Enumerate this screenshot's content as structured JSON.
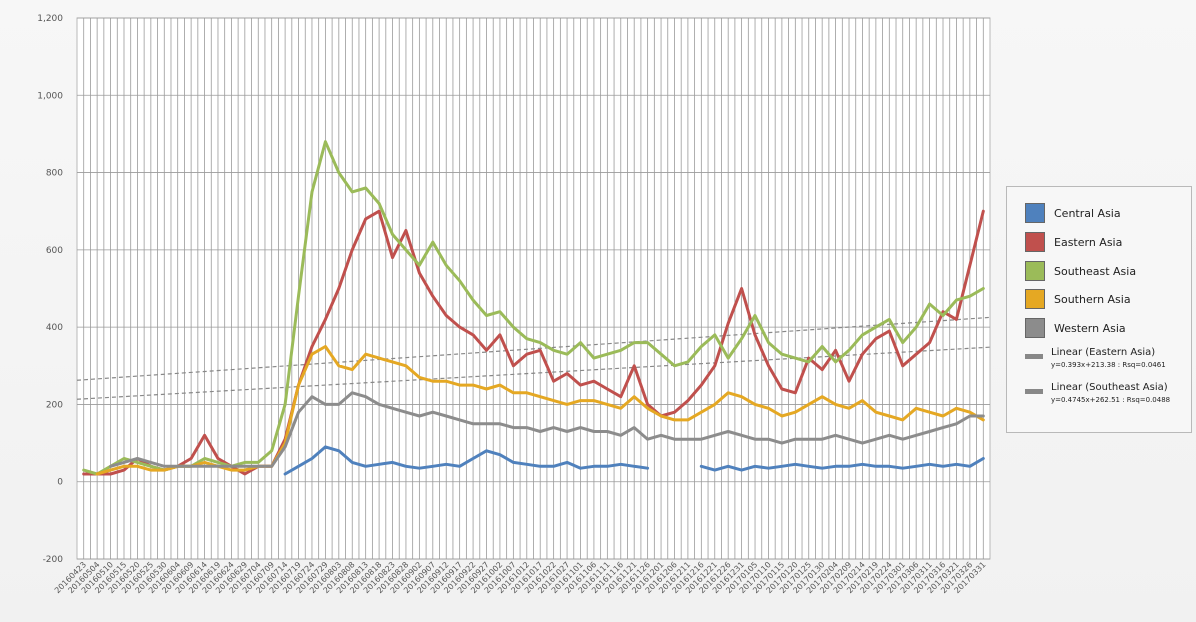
{
  "chart_data": {
    "type": "line",
    "title": "",
    "xlabel": "",
    "ylabel": "",
    "ylim": [
      -200,
      1200
    ],
    "yticks": [
      "-200",
      "0",
      "200",
      "400",
      "600",
      "800",
      "1,000",
      "1,200"
    ],
    "x_tick_labels": [
      "20160423",
      "20160504",
      "20160510",
      "20160515",
      "20160520",
      "20160525",
      "20160530",
      "20160604",
      "20160609",
      "20160614",
      "20160619",
      "20160624",
      "20160629",
      "20160704",
      "20160709",
      "20160714",
      "20160719",
      "20160724",
      "20160729",
      "20160803",
      "20160808",
      "20160813",
      "20160818",
      "20160823",
      "20160828",
      "20160902",
      "20160907",
      "20160912",
      "20160917",
      "20160922",
      "20160927",
      "20161002",
      "20161007",
      "20161012",
      "20161017",
      "20161022",
      "20161027",
      "20161101",
      "20161106",
      "20161111",
      "20161116",
      "20161121",
      "20161126",
      "20161201",
      "20161206",
      "20161211",
      "20161216",
      "20161221",
      "20161226",
      "20161231",
      "20170105",
      "20170110",
      "20170115",
      "20170120",
      "20170125",
      "20170130",
      "20170204",
      "20170209",
      "20170214",
      "20170219",
      "20170224",
      "20170301",
      "20170306",
      "20170311",
      "20170316",
      "20170321",
      "20170326",
      "20170331"
    ],
    "grid": true,
    "legend_position": "right",
    "series": [
      {
        "name": "Central Asia",
        "color": "#4f81bd",
        "values": [
          null,
          null,
          null,
          null,
          null,
          null,
          null,
          null,
          null,
          null,
          null,
          null,
          null,
          null,
          null,
          20,
          40,
          60,
          90,
          80,
          50,
          40,
          45,
          50,
          40,
          35,
          40,
          45,
          40,
          60,
          80,
          70,
          50,
          45,
          40,
          40,
          50,
          35,
          40,
          40,
          45,
          40,
          35,
          null,
          null,
          null,
          40,
          30,
          40,
          30,
          40,
          35,
          40,
          45,
          40,
          35,
          40,
          40,
          45,
          40,
          40,
          35,
          40,
          45,
          40,
          45,
          40,
          60
        ]
      },
      {
        "name": "Eastern Asia",
        "color": "#c0504d",
        "values": [
          20,
          20,
          20,
          30,
          60,
          40,
          30,
          40,
          60,
          120,
          60,
          40,
          20,
          40,
          40,
          110,
          250,
          350,
          420,
          500,
          600,
          680,
          700,
          580,
          650,
          540,
          480,
          430,
          400,
          380,
          340,
          380,
          300,
          330,
          340,
          260,
          280,
          250,
          260,
          240,
          220,
          300,
          200,
          170,
          180,
          210,
          250,
          300,
          410,
          500,
          380,
          300,
          240,
          230,
          320,
          290,
          340,
          260,
          330,
          370,
          390,
          300,
          330,
          360,
          440,
          420,
          560,
          700
        ]
      },
      {
        "name": "Southeast Asia",
        "color": "#9bbb59",
        "values": [
          30,
          20,
          40,
          60,
          50,
          40,
          30,
          40,
          40,
          60,
          50,
          40,
          50,
          50,
          80,
          200,
          480,
          750,
          880,
          800,
          750,
          760,
          720,
          640,
          600,
          560,
          620,
          560,
          520,
          470,
          430,
          440,
          400,
          370,
          360,
          340,
          330,
          360,
          320,
          330,
          340,
          360,
          360,
          330,
          300,
          310,
          350,
          380,
          320,
          370,
          430,
          360,
          330,
          320,
          310,
          350,
          310,
          340,
          380,
          400,
          420,
          360,
          400,
          460,
          430,
          470,
          480,
          500
        ]
      },
      {
        "name": "Southern Asia",
        "color": "#e5a823",
        "values": [
          null,
          20,
          30,
          40,
          40,
          30,
          30,
          40,
          40,
          50,
          40,
          30,
          30,
          40,
          40,
          100,
          250,
          330,
          350,
          300,
          290,
          330,
          320,
          310,
          300,
          270,
          260,
          260,
          250,
          250,
          240,
          250,
          230,
          230,
          220,
          210,
          200,
          210,
          210,
          200,
          190,
          220,
          190,
          170,
          160,
          160,
          180,
          200,
          230,
          220,
          200,
          190,
          170,
          180,
          200,
          220,
          200,
          190,
          210,
          180,
          170,
          160,
          190,
          180,
          170,
          190,
          180,
          160
        ]
      },
      {
        "name": "Western Asia",
        "color": "#8c8c8c",
        "values": [
          null,
          null,
          40,
          50,
          60,
          50,
          40,
          40,
          40,
          40,
          40,
          40,
          40,
          40,
          40,
          90,
          180,
          220,
          200,
          200,
          230,
          220,
          200,
          190,
          180,
          170,
          180,
          170,
          160,
          150,
          150,
          150,
          140,
          140,
          130,
          140,
          130,
          140,
          130,
          130,
          120,
          140,
          110,
          120,
          110,
          110,
          110,
          120,
          130,
          120,
          110,
          110,
          100,
          110,
          110,
          110,
          120,
          110,
          100,
          110,
          120,
          110,
          120,
          130,
          140,
          150,
          170,
          170
        ]
      }
    ],
    "trendlines": [
      {
        "name": "Linear (Eastern Asia)",
        "equation": "y=0.393x+213.38 : Rsq=0.0461",
        "slope": 0.393,
        "intercept": 213.38
      },
      {
        "name": "Linear (Southeast Asia)",
        "equation": "y=0.4745x+262.51 : Rsq=0.0488",
        "slope": 0.4745,
        "intercept": 262.51
      }
    ]
  }
}
